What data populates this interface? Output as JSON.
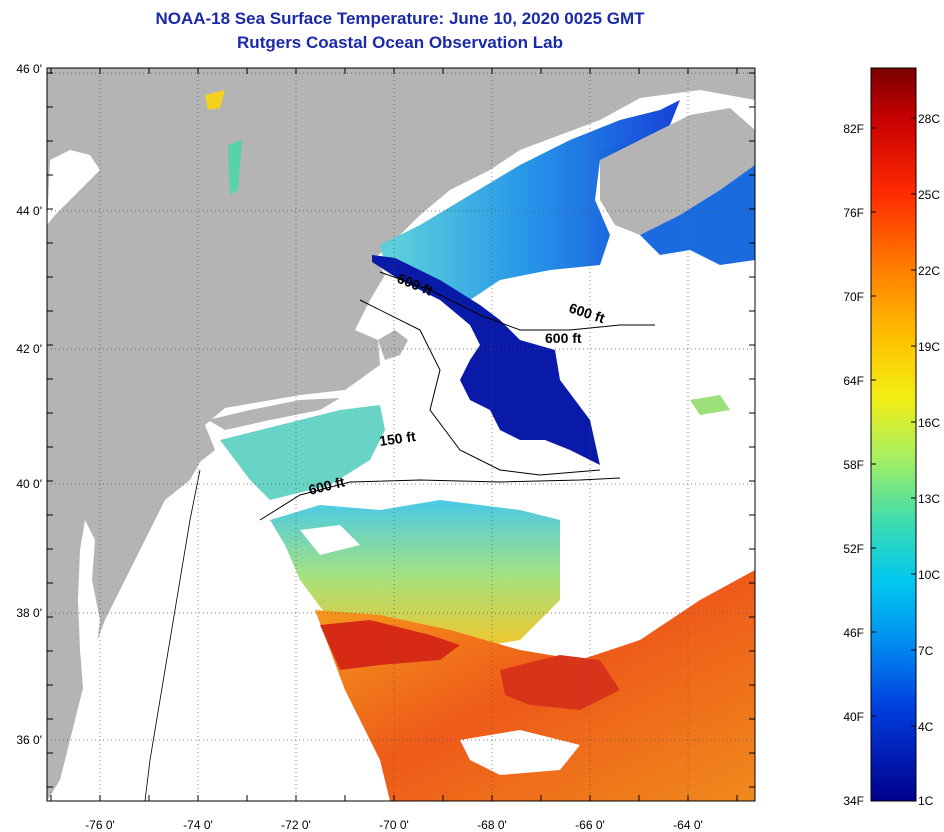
{
  "header": {
    "title": "NOAA-18 Sea Surface Temperature:  June 10, 2020 0025 GMT",
    "subtitle": "Rutgers Coastal Ocean Observation Lab"
  },
  "map": {
    "lat_ticks": [
      "46 0'",
      "44 0'",
      "42 0'",
      "40 0'",
      "38 0'",
      "36 0'"
    ],
    "lon_ticks": [
      "-76 0'",
      "-74 0'",
      "-72 0'",
      "-70 0'",
      "-68 0'",
      "-66 0'",
      "-64 0'"
    ],
    "depth_labels": [
      "600 ft",
      "600 ft",
      "600 ft",
      "150 ft",
      "600 ft"
    ],
    "colors": {
      "land": "#b4b4b4",
      "no_data": "#ffffff",
      "cold": "#000a96",
      "warm": "#e8321a"
    }
  },
  "color_scale": {
    "fahrenheit": [
      "82F",
      "76F",
      "70F",
      "64F",
      "58F",
      "52F",
      "46F",
      "40F",
      "34F"
    ],
    "celsius": [
      "28C",
      "25C",
      "22C",
      "19C",
      "16C",
      "13C",
      "10C",
      "7C",
      "4C",
      "1C"
    ]
  }
}
